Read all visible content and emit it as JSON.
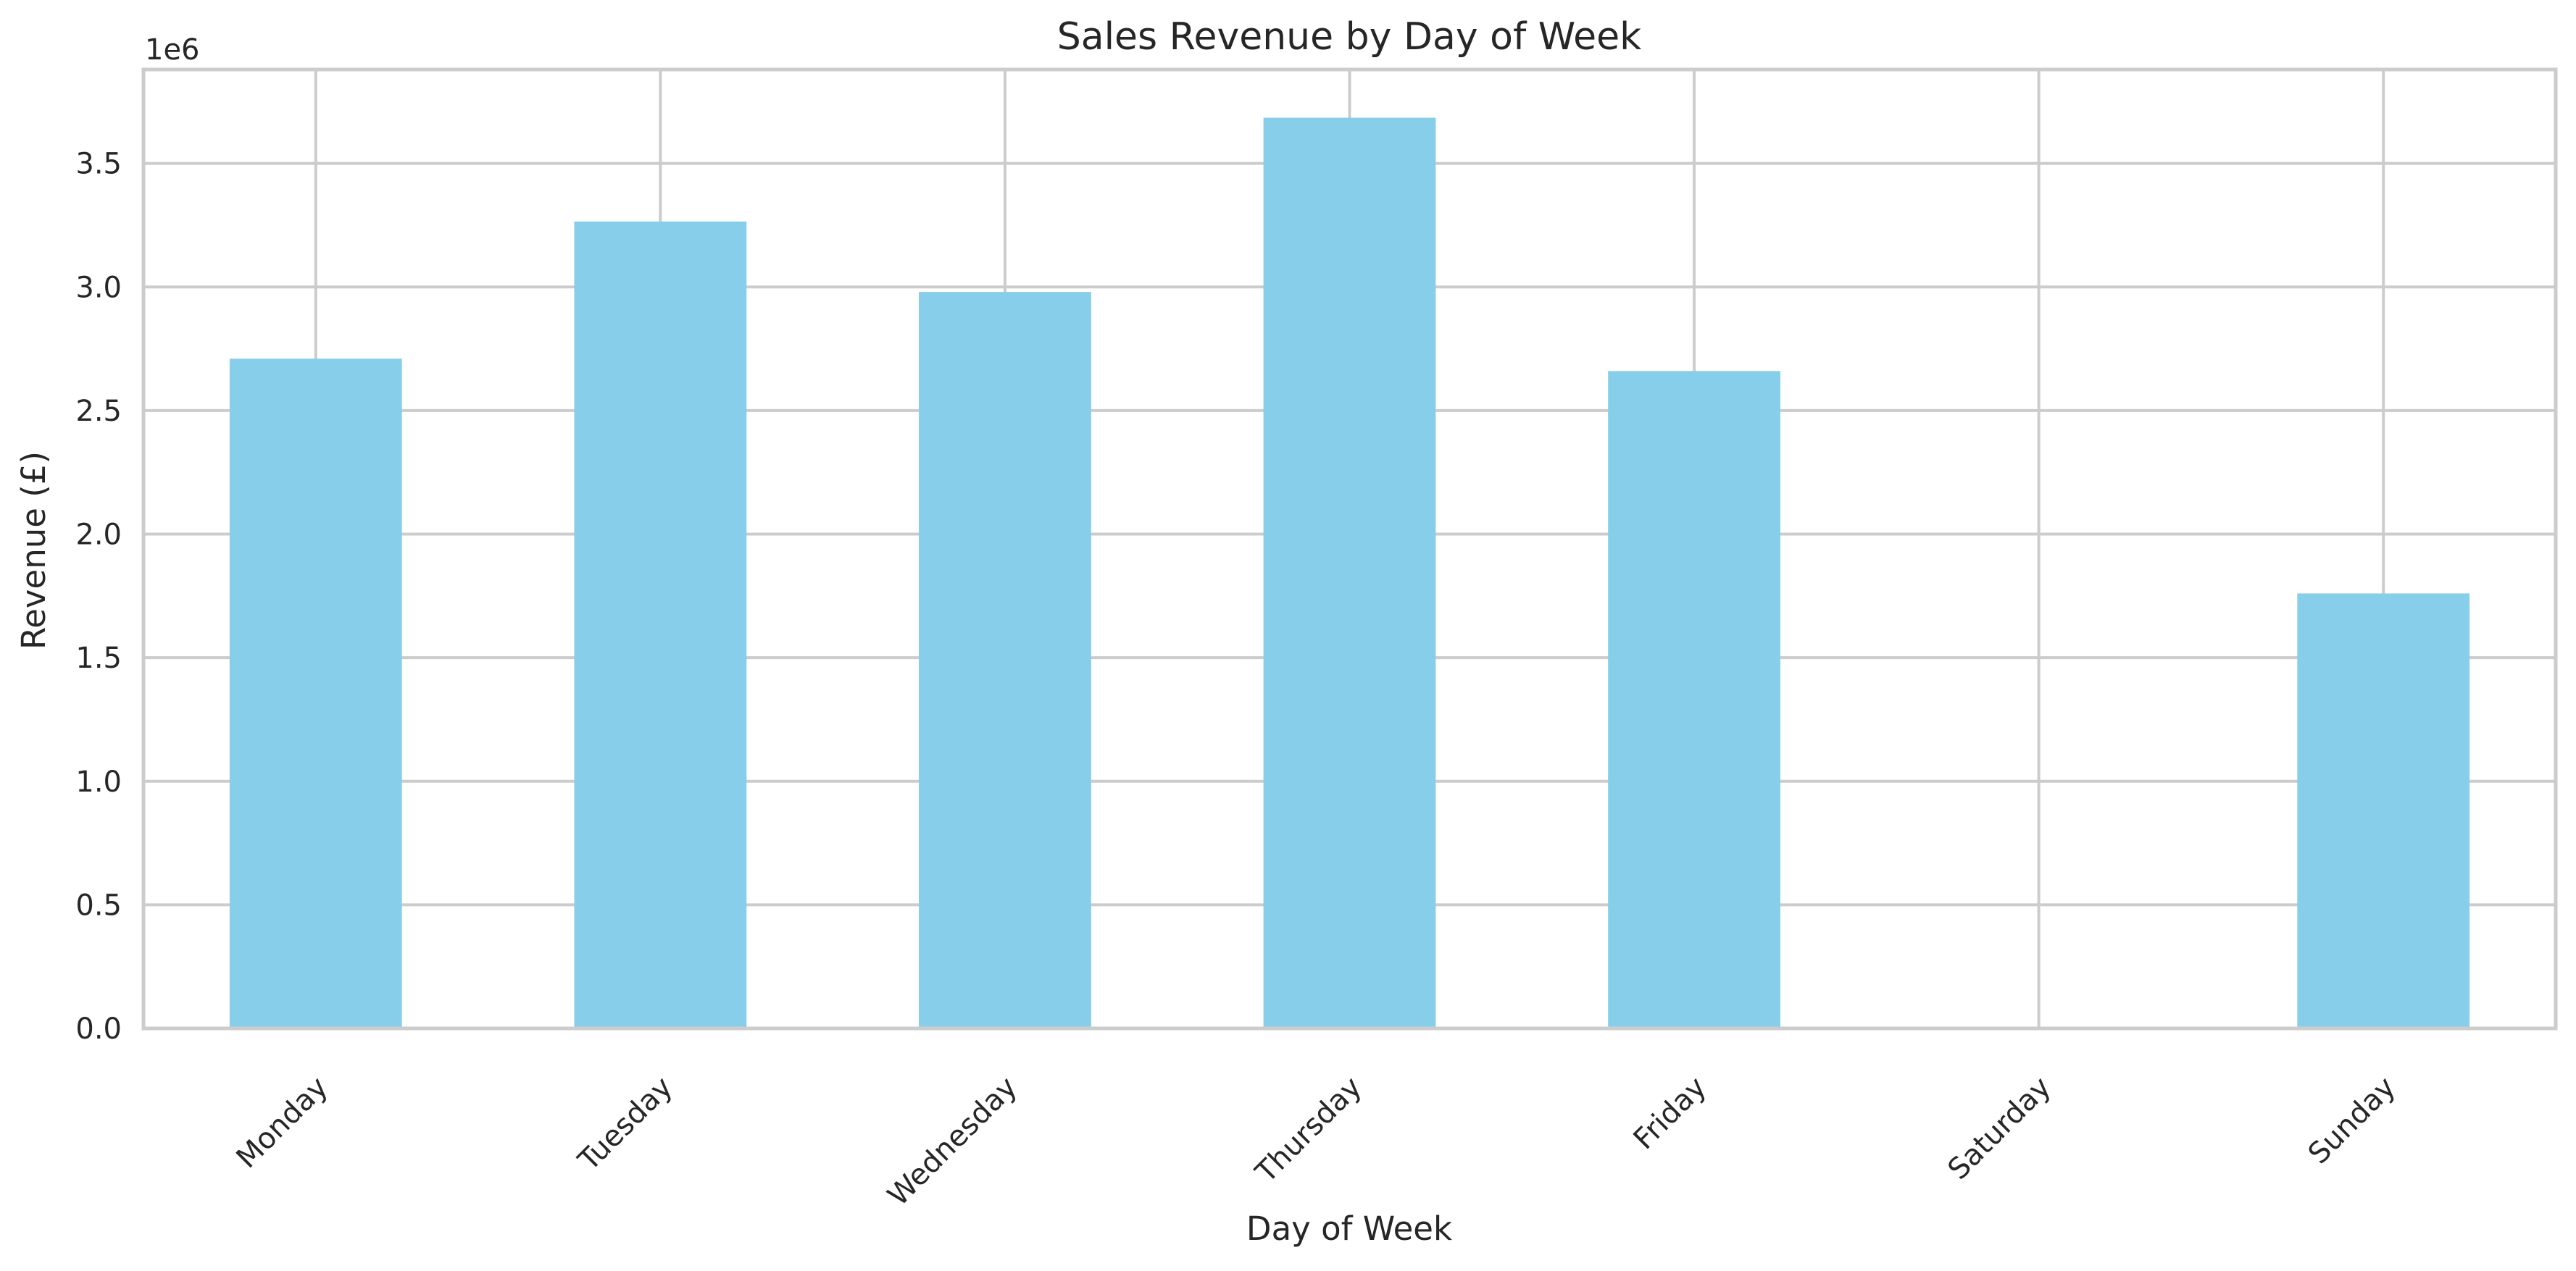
{
  "chart_data": {
    "type": "bar",
    "title": "Sales Revenue by Day of Week",
    "xlabel": "Day of Week",
    "ylabel": "Revenue (£)",
    "y_offset_text": "1e6",
    "y_multiplier": 1000000,
    "categories": [
      "Monday",
      "Tuesday",
      "Wednesday",
      "Thursday",
      "Friday",
      "Saturday",
      "Sunday"
    ],
    "values": [
      2710000,
      3265000,
      2980000,
      3685000,
      2660000,
      0,
      1760000
    ],
    "ylim": [
      0,
      3880000
    ],
    "yticks": [
      0,
      500000,
      1000000,
      1500000,
      2000000,
      2500000,
      3000000,
      3500000
    ],
    "ytick_labels": [
      "0.0",
      "0.5",
      "1.0",
      "1.5",
      "2.0",
      "2.5",
      "3.0",
      "3.5"
    ],
    "grid": true,
    "legend": "none",
    "bar_color": "#87ceeb",
    "grid_color": "#cccccc",
    "text_color": "#262626"
  }
}
